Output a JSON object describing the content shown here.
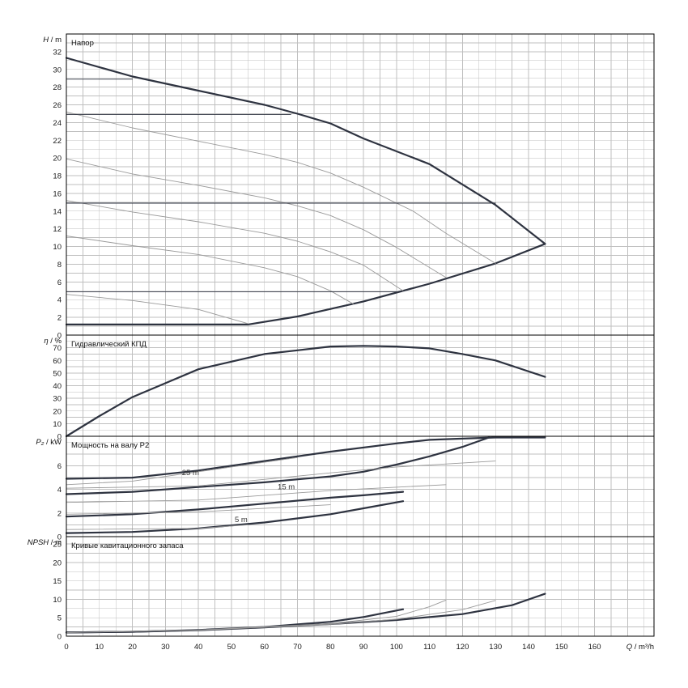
{
  "chart_data": [
    {
      "type": "line",
      "id": "head",
      "title": "Напор",
      "ylabel_var": "H",
      "ylabel_unit": "m",
      "ylim": [
        0,
        34
      ],
      "yticks": [
        0,
        2,
        4,
        6,
        8,
        10,
        12,
        14,
        16,
        18,
        20,
        22,
        24,
        26,
        28,
        30,
        32
      ],
      "grid": true,
      "series": [
        {
          "style": "main",
          "x": [
            0,
            20,
            40,
            60,
            70,
            80,
            90,
            110,
            130,
            145
          ],
          "y": [
            31.3,
            29.2,
            27.6,
            26.0,
            25.0,
            23.9,
            22.2,
            19.3,
            14.7,
            10.3
          ]
        },
        {
          "style": "main",
          "x": [
            0,
            55,
            70,
            90,
            110,
            130,
            145
          ],
          "y": [
            1.2,
            1.2,
            2.1,
            3.8,
            5.8,
            8.1,
            10.3
          ]
        },
        {
          "style": "thin",
          "x": [
            0,
            20,
            40,
            60,
            70,
            80,
            90,
            105,
            115,
            130
          ],
          "y": [
            25.2,
            23.4,
            21.9,
            20.4,
            19.5,
            18.3,
            16.7,
            14.0,
            11.5,
            8.1
          ]
        },
        {
          "style": "thin",
          "x": [
            0,
            20,
            40,
            60,
            70,
            80,
            90,
            100,
            115
          ],
          "y": [
            19.9,
            18.2,
            16.9,
            15.5,
            14.6,
            13.5,
            11.9,
            9.9,
            6.5
          ]
        },
        {
          "style": "thin",
          "x": [
            0,
            20,
            40,
            60,
            70,
            80,
            90,
            102
          ],
          "y": [
            15.2,
            13.9,
            12.8,
            11.5,
            10.6,
            9.4,
            7.9,
            5.0
          ]
        },
        {
          "style": "thin",
          "x": [
            0,
            20,
            40,
            60,
            70,
            80,
            87
          ],
          "y": [
            11.2,
            10.1,
            9.1,
            7.6,
            6.6,
            5.0,
            3.5
          ]
        },
        {
          "style": "thin",
          "x": [
            0,
            20,
            40,
            55
          ],
          "y": [
            4.6,
            3.9,
            2.9,
            1.3
          ]
        },
        {
          "style": "ref",
          "x": [
            0,
            20
          ],
          "y": [
            28.9,
            28.9
          ]
        },
        {
          "style": "ref",
          "x": [
            0,
            68
          ],
          "y": [
            24.9,
            24.9
          ]
        },
        {
          "style": "ref",
          "x": [
            0,
            130
          ],
          "y": [
            14.9,
            14.9
          ]
        },
        {
          "style": "ref",
          "x": [
            0,
            100
          ],
          "y": [
            4.9,
            4.9
          ]
        }
      ]
    },
    {
      "type": "line",
      "id": "efficiency",
      "title": "Гидравлический КПД",
      "ylabel_var": "η",
      "ylabel_unit": "%",
      "ylim": [
        0,
        80
      ],
      "yticks": [
        0,
        10,
        20,
        30,
        40,
        50,
        60,
        70
      ],
      "grid": true,
      "series": [
        {
          "style": "main",
          "x": [
            0,
            10,
            20,
            30,
            40,
            50,
            60,
            70,
            80,
            90,
            100,
            110,
            120,
            130,
            145
          ],
          "y": [
            0,
            16,
            31,
            42,
            53,
            59,
            65,
            68,
            71,
            71.5,
            71,
            69.5,
            65,
            60,
            47
          ]
        }
      ]
    },
    {
      "type": "line",
      "id": "power",
      "title": "Мощность на валу P2",
      "ylabel_var": "P₂",
      "ylabel_unit": "kW",
      "ylim": [
        0,
        8.5
      ],
      "yticks": [
        0,
        2,
        4,
        6
      ],
      "grid": true,
      "annotations": [
        {
          "text": "25 m",
          "x": 35,
          "y": 5.2
        },
        {
          "text": "15 m",
          "x": 64,
          "y": 4.0
        },
        {
          "text": "5 m",
          "x": 51,
          "y": 1.25
        }
      ],
      "series": [
        {
          "style": "main",
          "x": [
            0,
            20,
            40,
            60,
            80,
            100,
            110,
            120,
            130,
            145
          ],
          "y": [
            4.9,
            5.0,
            5.6,
            6.4,
            7.2,
            7.9,
            8.2,
            8.3,
            8.4,
            8.4
          ]
        },
        {
          "style": "main",
          "x": [
            0,
            20,
            40,
            60,
            80,
            90,
            100,
            110,
            120,
            128
          ],
          "y": [
            3.6,
            3.8,
            4.2,
            4.6,
            5.1,
            5.5,
            6.1,
            6.8,
            7.6,
            8.4
          ]
        },
        {
          "style": "main",
          "x": [
            0,
            20,
            40,
            60,
            80,
            90,
            102
          ],
          "y": [
            1.7,
            1.9,
            2.3,
            2.8,
            3.3,
            3.5,
            3.8
          ]
        },
        {
          "style": "main",
          "x": [
            0,
            20,
            40,
            60,
            80,
            90,
            102
          ],
          "y": [
            0.3,
            0.4,
            0.7,
            1.2,
            1.9,
            2.4,
            3.0
          ]
        },
        {
          "style": "thin",
          "x": [
            0,
            20,
            40,
            60,
            70
          ],
          "y": [
            4.4,
            4.7,
            5.5,
            6.3,
            6.7
          ]
        },
        {
          "style": "thin",
          "x": [
            0,
            40,
            80,
            100,
            130
          ],
          "y": [
            4.1,
            4.3,
            5.4,
            5.9,
            6.4
          ]
        },
        {
          "style": "thin",
          "x": [
            0,
            40,
            80,
            115
          ],
          "y": [
            2.9,
            3.1,
            3.9,
            4.4
          ]
        },
        {
          "style": "thin",
          "x": [
            0,
            40,
            80
          ],
          "y": [
            1.9,
            2.1,
            2.7
          ]
        },
        {
          "style": "thin",
          "x": [
            0,
            40,
            55
          ],
          "y": [
            0.6,
            0.7,
            1.0
          ]
        }
      ]
    },
    {
      "type": "line",
      "id": "npsh",
      "title": "Кривые кавитационного запаса",
      "ylabel_var": "NPSH",
      "ylabel_unit": "m",
      "ylim": [
        0,
        27
      ],
      "yticks": [
        0,
        5,
        10,
        15,
        20,
        25
      ],
      "grid": true,
      "series": [
        {
          "style": "main",
          "x": [
            0,
            20,
            40,
            60,
            80,
            100,
            120,
            135,
            145
          ],
          "y": [
            1.0,
            1.2,
            1.6,
            2.4,
            3.3,
            4.4,
            6.0,
            8.4,
            11.5
          ]
        },
        {
          "style": "main",
          "x": [
            0,
            20,
            40,
            60,
            80,
            90,
            102
          ],
          "y": [
            1.0,
            1.2,
            1.7,
            2.5,
            3.9,
            5.2,
            7.3
          ]
        },
        {
          "style": "thin",
          "x": [
            0,
            40,
            80,
            100,
            110,
            115
          ],
          "y": [
            1.0,
            1.7,
            3.4,
            5.4,
            8.0,
            9.8
          ]
        },
        {
          "style": "thin",
          "x": [
            0,
            40,
            80,
            100,
            120,
            130
          ],
          "y": [
            1.0,
            1.6,
            3.2,
            4.6,
            7.2,
            9.7
          ]
        }
      ]
    }
  ],
  "x_axis": {
    "label_var": "Q",
    "label_unit": "m³/h",
    "xlim": [
      0,
      178
    ],
    "ticks": [
      0,
      10,
      20,
      30,
      40,
      50,
      60,
      70,
      80,
      90,
      100,
      110,
      120,
      130,
      140,
      150,
      160
    ]
  },
  "colors": {
    "main": "#2e3340",
    "thin": "#9a9a9a",
    "ref": "#2e3340",
    "grid": "#bfbfbf",
    "frame": "#000000"
  }
}
